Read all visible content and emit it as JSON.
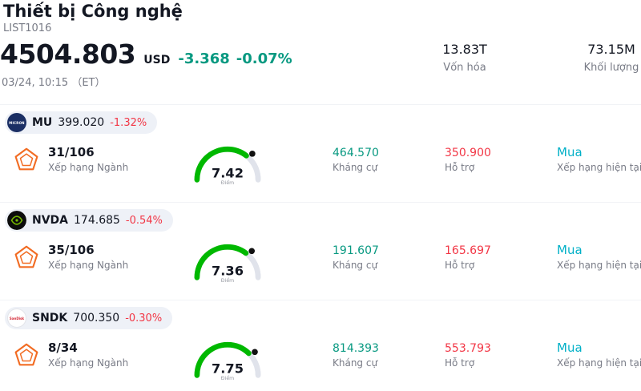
{
  "header": {
    "title": "Thiết bị Công nghệ",
    "list_id": "LIST1016",
    "price": "4504.803",
    "currency": "USD",
    "change": "-3.368",
    "change_pct": "-0.07%",
    "timestamp": "03/24, 10:15 （ET）",
    "stats": [
      {
        "value": "13.83T",
        "label": "Vốn hóa"
      },
      {
        "value": "73.15M",
        "label": "Khối lượng"
      }
    ]
  },
  "labels": {
    "rank": "Xếp hạng Ngành",
    "score": "Điểm",
    "resistance": "Kháng cự",
    "support": "Hỗ trợ",
    "current_rating": "Xếp hạng hiện tại"
  },
  "stocks": [
    {
      "ticker": "MU",
      "logo": "micron-logo",
      "logo_text": "MICRON",
      "price": "399.020",
      "change": "-1.32%",
      "rank": "31/106",
      "score": "7.42",
      "score_value": 7.42,
      "resistance": "464.570",
      "support": "350.900",
      "rating": "Mua"
    },
    {
      "ticker": "NVDA",
      "logo": "nvidia-logo",
      "logo_text": "",
      "price": "174.685",
      "change": "-0.54%",
      "rank": "35/106",
      "score": "7.36",
      "score_value": 7.36,
      "resistance": "191.607",
      "support": "165.697",
      "rating": "Mua"
    },
    {
      "ticker": "SNDK",
      "logo": "sandisk-logo",
      "logo_text": "SanDisk",
      "price": "700.350",
      "change": "-0.30%",
      "rank": "8/34",
      "score": "7.75",
      "score_value": 7.75,
      "resistance": "814.393",
      "support": "553.793",
      "rating": "Mua"
    }
  ],
  "chart_data": [
    {
      "type": "gauge",
      "title": "MU technical score",
      "value": 7.42,
      "range": [
        0,
        10
      ],
      "label": "Điểm"
    },
    {
      "type": "gauge",
      "title": "NVDA technical score",
      "value": 7.36,
      "range": [
        0,
        10
      ],
      "label": "Điểm"
    },
    {
      "type": "gauge",
      "title": "SNDK technical score",
      "value": 7.75,
      "range": [
        0,
        10
      ],
      "label": "Điểm"
    }
  ],
  "colors": {
    "positive_teal": "#089981",
    "negative_red": "#f23645",
    "rating_cyan": "#00b0c7",
    "gauge_green": "#00b800",
    "gauge_track": "#e0e3eb",
    "gauge_dot": "#111111",
    "pentagon_orange": "#f26c23",
    "pill_bg": "#eef1f7",
    "secondary_text": "#787b86",
    "nvidia_green": "#76b900",
    "micron_navy": "#1b2f64",
    "sandisk_red": "#d21f2d"
  }
}
